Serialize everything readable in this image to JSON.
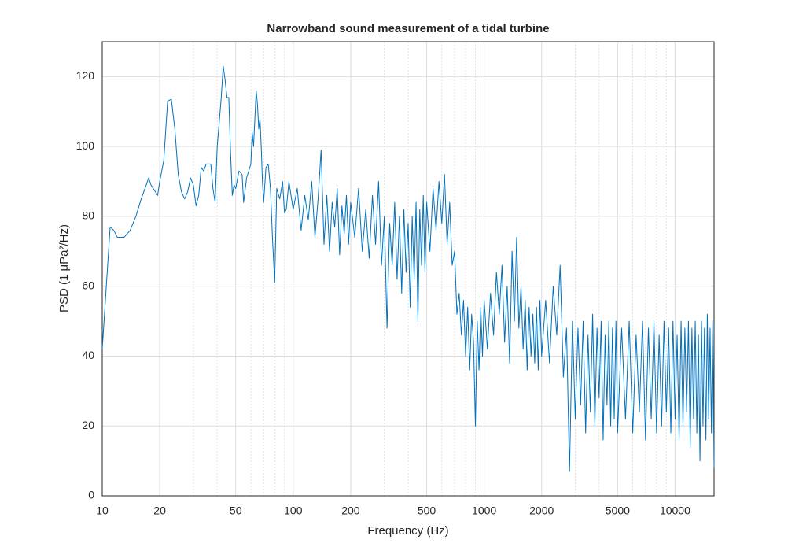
{
  "chart_data": {
    "type": "line",
    "title": "Narrowband sound measurement of a tidal turbine",
    "x_label": "Frequency (Hz)",
    "y_label": "PSD (1 μPa²/Hz)",
    "x_scale": "log",
    "xlim": [
      10,
      16000
    ],
    "ylim": [
      0,
      130
    ],
    "xticks": [
      10,
      20,
      50,
      100,
      200,
      500,
      1000,
      2000,
      5000,
      10000
    ],
    "xminorticks": [
      30,
      40,
      60,
      70,
      80,
      90,
      300,
      400,
      600,
      700,
      800,
      900,
      3000,
      4000,
      6000,
      7000,
      8000,
      9000
    ],
    "yticks": [
      0,
      20,
      40,
      60,
      80,
      100,
      120
    ],
    "grid": true,
    "color": "#0072bd",
    "x": [
      10,
      10.5,
      11,
      11.5,
      12,
      13,
      14,
      15,
      16,
      17,
      17.5,
      18,
      19,
      19.5,
      20,
      21,
      22,
      23,
      24,
      25,
      26,
      27,
      28,
      29,
      30,
      31,
      32,
      33,
      34,
      35,
      36,
      37,
      38,
      39,
      40,
      42,
      43,
      44,
      45,
      46,
      47,
      48,
      49,
      50,
      52,
      54,
      55,
      57,
      60,
      61,
      62,
      63,
      64,
      65,
      66,
      67,
      68,
      69,
      70,
      72,
      74,
      76,
      78,
      80,
      82,
      85,
      88,
      90,
      92,
      95,
      98,
      100,
      105,
      110,
      115,
      120,
      125,
      130,
      135,
      140,
      145,
      150,
      155,
      160,
      165,
      170,
      175,
      180,
      185,
      190,
      195,
      200,
      210,
      220,
      230,
      240,
      250,
      260,
      270,
      280,
      290,
      300,
      310,
      320,
      330,
      340,
      350,
      360,
      370,
      380,
      390,
      400,
      410,
      420,
      430,
      440,
      450,
      460,
      470,
      480,
      490,
      500,
      520,
      540,
      560,
      580,
      600,
      620,
      640,
      660,
      680,
      700,
      720,
      740,
      760,
      780,
      800,
      820,
      840,
      860,
      880,
      900,
      920,
      940,
      960,
      980,
      1000,
      1040,
      1080,
      1120,
      1160,
      1200,
      1240,
      1280,
      1320,
      1360,
      1400,
      1440,
      1480,
      1520,
      1560,
      1600,
      1640,
      1680,
      1720,
      1760,
      1800,
      1840,
      1880,
      1920,
      1960,
      2000,
      2100,
      2200,
      2300,
      2400,
      2500,
      2600,
      2700,
      2800,
      2900,
      3000,
      3100,
      3200,
      3300,
      3400,
      3500,
      3600,
      3700,
      3800,
      3900,
      4000,
      4100,
      4200,
      4300,
      4400,
      4500,
      4600,
      4700,
      4800,
      4900,
      5000,
      5250,
      5500,
      5750,
      6000,
      6250,
      6500,
      6750,
      7000,
      7250,
      7500,
      7750,
      8000,
      8250,
      8500,
      8750,
      9000,
      9250,
      9500,
      9750,
      10000,
      10250,
      10500,
      10750,
      11000,
      11250,
      11500,
      11750,
      12000,
      12250,
      12500,
      12750,
      13000,
      13250,
      13500,
      13750,
      14000,
      14250,
      14500,
      14750,
      15000,
      15250,
      15500,
      15750,
      16000
    ],
    "values": [
      42,
      60,
      77,
      76,
      74,
      74,
      76,
      80,
      85,
      89,
      91,
      89,
      87,
      86,
      90,
      96,
      113,
      113.5,
      105,
      92,
      87,
      85,
      87,
      91,
      89,
      83,
      86,
      94,
      93,
      95,
      95,
      95,
      88,
      84,
      100,
      114,
      123,
      119,
      114,
      114,
      98,
      86,
      89,
      88,
      93,
      92,
      84,
      91,
      95,
      104,
      100,
      108,
      116,
      112,
      105,
      108,
      100,
      90,
      84,
      94,
      95,
      88,
      73,
      61,
      88,
      85,
      90,
      81,
      82,
      90,
      85,
      82,
      88,
      76,
      86,
      79,
      90,
      74,
      85,
      99,
      72,
      86,
      70,
      84,
      77,
      88,
      69,
      83,
      75,
      86,
      72,
      84,
      74,
      88,
      70,
      82,
      68,
      86,
      72,
      90,
      66,
      80,
      48,
      78,
      66,
      84,
      62,
      80,
      58,
      82,
      64,
      78,
      54,
      80,
      62,
      84,
      50,
      82,
      66,
      86,
      64,
      84,
      70,
      88,
      76,
      90,
      78,
      92,
      72,
      84,
      66,
      70,
      52,
      58,
      46,
      56,
      40,
      54,
      36,
      52,
      44,
      20,
      50,
      36,
      54,
      40,
      56,
      42,
      58,
      46,
      64,
      52,
      66,
      44,
      60,
      38,
      70,
      50,
      74,
      48,
      60,
      42,
      56,
      36,
      54,
      40,
      52,
      38,
      54,
      36,
      56,
      40,
      56,
      38,
      60,
      46,
      66,
      34,
      48,
      7,
      50,
      22,
      48,
      26,
      50,
      18,
      46,
      24,
      52,
      20,
      48,
      28,
      50,
      16,
      46,
      26,
      50,
      20,
      48,
      22,
      50,
      18,
      48,
      22,
      50,
      18,
      46,
      24,
      50,
      16,
      48,
      22,
      50,
      18,
      46,
      20,
      50,
      24,
      48,
      18,
      50,
      22,
      46,
      16,
      50,
      20,
      48,
      24,
      50,
      14,
      48,
      22,
      50,
      18,
      46,
      10,
      50,
      20,
      48,
      16,
      52,
      22,
      48,
      18,
      50,
      8
    ]
  }
}
